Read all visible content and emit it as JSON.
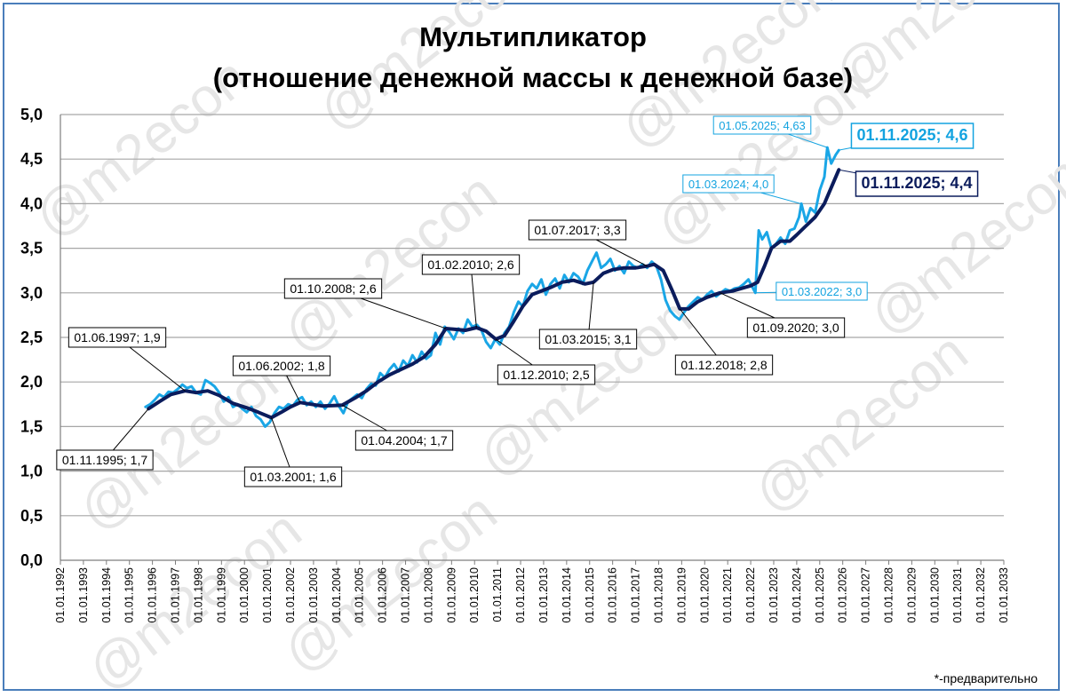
{
  "watermark": "@m2econ",
  "footnote": "*-предварительно",
  "colors": {
    "monthly": "#1aa6e6",
    "trend": "#0b1c5c",
    "grid": "#a6a6a6",
    "frame": "#4a7ebb",
    "watermark": "#e6e6e6"
  },
  "chart_data": {
    "type": "line",
    "title": "Мультипликатор",
    "subtitle": "(отношение денежной массы к денежной базе)",
    "xlabel": "",
    "ylabel": "",
    "xlim": [
      1992,
      2033
    ],
    "ylim": [
      0,
      5
    ],
    "y_ticks": [
      "0,0",
      "0,5",
      "1,0",
      "1,5",
      "2,0",
      "2,5",
      "3,0",
      "3,5",
      "4,0",
      "4,5",
      "5,0"
    ],
    "x_ticks": [
      "01.01.1992",
      "01.01.1993",
      "01.01.1994",
      "01.01.1995",
      "01.01.1996",
      "01.01.1997",
      "01.01.1998",
      "01.01.1999",
      "01.01.2000",
      "01.01.2001",
      "01.01.2002",
      "01.01.2003",
      "01.01.2004",
      "01.01.2005",
      "01.01.2006",
      "01.01.2007",
      "01.01.2008",
      "01.01.2009",
      "01.01.2010",
      "01.01.2011",
      "01.01.2012",
      "01.01.2013",
      "01.01.2014",
      "01.01.2015",
      "01.01.2016",
      "01.01.2017",
      "01.01.2018",
      "01.01.2019",
      "01.01.2020",
      "01.01.2021",
      "01.01.2022",
      "01.01.2023",
      "01.01.2024",
      "01.01.2025",
      "01.01.2026",
      "01.01.2027",
      "01.01.2028",
      "01.01.2029",
      "01.01.2030",
      "01.01.2031",
      "01.01.2032",
      "01.01.2033"
    ],
    "grid": true,
    "legend": "none",
    "series": [
      {
        "color": "#1aa6e6",
        "points": [
          [
            1995.7,
            1.72
          ],
          [
            1995.9,
            1.75
          ],
          [
            1996.1,
            1.8
          ],
          [
            1996.3,
            1.86
          ],
          [
            1996.5,
            1.83
          ],
          [
            1996.7,
            1.89
          ],
          [
            1996.9,
            1.88
          ],
          [
            1997.1,
            1.92
          ],
          [
            1997.3,
            1.97
          ],
          [
            1997.5,
            1.93
          ],
          [
            1997.7,
            1.95
          ],
          [
            1997.9,
            1.88
          ],
          [
            1998.1,
            1.86
          ],
          [
            1998.3,
            2.02
          ],
          [
            1998.5,
            1.99
          ],
          [
            1998.7,
            1.95
          ],
          [
            1998.9,
            1.88
          ],
          [
            1999.1,
            1.78
          ],
          [
            1999.3,
            1.83
          ],
          [
            1999.5,
            1.72
          ],
          [
            1999.7,
            1.75
          ],
          [
            1999.9,
            1.7
          ],
          [
            2000.1,
            1.66
          ],
          [
            2000.3,
            1.72
          ],
          [
            2000.5,
            1.62
          ],
          [
            2000.7,
            1.58
          ],
          [
            2000.9,
            1.5
          ],
          [
            2001.1,
            1.55
          ],
          [
            2001.3,
            1.65
          ],
          [
            2001.5,
            1.72
          ],
          [
            2001.7,
            1.7
          ],
          [
            2001.9,
            1.75
          ],
          [
            2002.1,
            1.73
          ],
          [
            2002.3,
            1.8
          ],
          [
            2002.5,
            1.83
          ],
          [
            2002.7,
            1.74
          ],
          [
            2002.9,
            1.78
          ],
          [
            2003.1,
            1.72
          ],
          [
            2003.3,
            1.78
          ],
          [
            2003.5,
            1.7
          ],
          [
            2003.7,
            1.76
          ],
          [
            2003.9,
            1.84
          ],
          [
            2004.1,
            1.73
          ],
          [
            2004.3,
            1.65
          ],
          [
            2004.5,
            1.78
          ],
          [
            2004.7,
            1.82
          ],
          [
            2004.9,
            1.86
          ],
          [
            2005.1,
            1.82
          ],
          [
            2005.3,
            1.92
          ],
          [
            2005.5,
            1.98
          ],
          [
            2005.7,
            1.96
          ],
          [
            2005.9,
            2.1
          ],
          [
            2006.1,
            2.05
          ],
          [
            2006.3,
            2.14
          ],
          [
            2006.5,
            2.2
          ],
          [
            2006.7,
            2.12
          ],
          [
            2006.9,
            2.24
          ],
          [
            2007.1,
            2.18
          ],
          [
            2007.3,
            2.3
          ],
          [
            2007.5,
            2.22
          ],
          [
            2007.7,
            2.34
          ],
          [
            2007.9,
            2.26
          ],
          [
            2008.1,
            2.3
          ],
          [
            2008.3,
            2.55
          ],
          [
            2008.5,
            2.42
          ],
          [
            2008.7,
            2.62
          ],
          [
            2008.9,
            2.56
          ],
          [
            2009.1,
            2.48
          ],
          [
            2009.3,
            2.6
          ],
          [
            2009.5,
            2.55
          ],
          [
            2009.7,
            2.7
          ],
          [
            2009.9,
            2.62
          ],
          [
            2010.1,
            2.64
          ],
          [
            2010.3,
            2.58
          ],
          [
            2010.5,
            2.45
          ],
          [
            2010.7,
            2.38
          ],
          [
            2010.9,
            2.48
          ],
          [
            2011.1,
            2.42
          ],
          [
            2011.3,
            2.55
          ],
          [
            2011.5,
            2.62
          ],
          [
            2011.7,
            2.78
          ],
          [
            2011.9,
            2.9
          ],
          [
            2012.1,
            2.85
          ],
          [
            2012.3,
            3.02
          ],
          [
            2012.5,
            3.1
          ],
          [
            2012.7,
            3.05
          ],
          [
            2012.9,
            3.15
          ],
          [
            2013.1,
            2.98
          ],
          [
            2013.3,
            3.1
          ],
          [
            2013.5,
            3.16
          ],
          [
            2013.7,
            3.05
          ],
          [
            2013.9,
            3.2
          ],
          [
            2014.1,
            3.12
          ],
          [
            2014.3,
            3.22
          ],
          [
            2014.5,
            3.18
          ],
          [
            2014.7,
            3.1
          ],
          [
            2014.9,
            3.25
          ],
          [
            2015.1,
            3.35
          ],
          [
            2015.3,
            3.45
          ],
          [
            2015.5,
            3.28
          ],
          [
            2015.7,
            3.32
          ],
          [
            2015.9,
            3.38
          ],
          [
            2016.1,
            3.25
          ],
          [
            2016.3,
            3.3
          ],
          [
            2016.5,
            3.22
          ],
          [
            2016.7,
            3.35
          ],
          [
            2016.9,
            3.3
          ],
          [
            2017.1,
            3.28
          ],
          [
            2017.3,
            3.32
          ],
          [
            2017.5,
            3.28
          ],
          [
            2017.7,
            3.35
          ],
          [
            2017.9,
            3.3
          ],
          [
            2018.1,
            3.15
          ],
          [
            2018.3,
            2.92
          ],
          [
            2018.5,
            2.8
          ],
          [
            2018.7,
            2.74
          ],
          [
            2018.9,
            2.7
          ],
          [
            2019.1,
            2.78
          ],
          [
            2019.3,
            2.85
          ],
          [
            2019.5,
            2.9
          ],
          [
            2019.7,
            2.95
          ],
          [
            2019.9,
            2.92
          ],
          [
            2020.1,
            2.98
          ],
          [
            2020.3,
            3.02
          ],
          [
            2020.5,
            2.96
          ],
          [
            2020.7,
            3.0
          ],
          [
            2020.9,
            3.04
          ],
          [
            2021.1,
            3.02
          ],
          [
            2021.3,
            3.05
          ],
          [
            2021.5,
            3.06
          ],
          [
            2021.7,
            3.1
          ],
          [
            2021.9,
            3.15
          ],
          [
            2022.1,
            3.05
          ],
          [
            2022.2,
            3.0
          ],
          [
            2022.35,
            3.7
          ],
          [
            2022.5,
            3.6
          ],
          [
            2022.7,
            3.68
          ],
          [
            2022.9,
            3.5
          ],
          [
            2023.1,
            3.55
          ],
          [
            2023.3,
            3.62
          ],
          [
            2023.5,
            3.55
          ],
          [
            2023.7,
            3.7
          ],
          [
            2023.9,
            3.72
          ],
          [
            2024.1,
            3.85
          ],
          [
            2024.2,
            4.0
          ],
          [
            2024.4,
            3.8
          ],
          [
            2024.6,
            3.95
          ],
          [
            2024.8,
            3.9
          ],
          [
            2025.0,
            4.15
          ],
          [
            2025.2,
            4.3
          ],
          [
            2025.33,
            4.63
          ],
          [
            2025.5,
            4.45
          ],
          [
            2025.7,
            4.55
          ],
          [
            2025.83,
            4.6
          ]
        ]
      },
      {
        "color": "#0b1c5c",
        "points": [
          [
            1995.83,
            1.7
          ],
          [
            1996.3,
            1.78
          ],
          [
            1996.8,
            1.86
          ],
          [
            1997.42,
            1.9
          ],
          [
            1997.9,
            1.88
          ],
          [
            1998.4,
            1.9
          ],
          [
            1998.9,
            1.85
          ],
          [
            1999.5,
            1.76
          ],
          [
            2000.1,
            1.71
          ],
          [
            2000.6,
            1.66
          ],
          [
            2001.17,
            1.6
          ],
          [
            2001.6,
            1.66
          ],
          [
            2002.0,
            1.72
          ],
          [
            2002.42,
            1.77
          ],
          [
            2002.9,
            1.75
          ],
          [
            2003.4,
            1.73
          ],
          [
            2004.25,
            1.74
          ],
          [
            2004.8,
            1.82
          ],
          [
            2005.3,
            1.9
          ],
          [
            2005.8,
            2.0
          ],
          [
            2006.3,
            2.08
          ],
          [
            2006.8,
            2.14
          ],
          [
            2007.3,
            2.2
          ],
          [
            2007.8,
            2.28
          ],
          [
            2008.3,
            2.42
          ],
          [
            2008.75,
            2.6
          ],
          [
            2009.2,
            2.59
          ],
          [
            2009.6,
            2.58
          ],
          [
            2010.08,
            2.61
          ],
          [
            2010.5,
            2.57
          ],
          [
            2010.92,
            2.48
          ],
          [
            2011.3,
            2.52
          ],
          [
            2011.7,
            2.68
          ],
          [
            2012.1,
            2.85
          ],
          [
            2012.5,
            2.98
          ],
          [
            2012.9,
            3.02
          ],
          [
            2013.3,
            3.06
          ],
          [
            2013.8,
            3.12
          ],
          [
            2014.3,
            3.14
          ],
          [
            2014.8,
            3.1
          ],
          [
            2015.17,
            3.12
          ],
          [
            2015.6,
            3.22
          ],
          [
            2016.0,
            3.26
          ],
          [
            2016.5,
            3.28
          ],
          [
            2017.0,
            3.28
          ],
          [
            2017.5,
            3.3
          ],
          [
            2017.8,
            3.32
          ],
          [
            2018.2,
            3.25
          ],
          [
            2018.6,
            3.02
          ],
          [
            2018.92,
            2.82
          ],
          [
            2019.3,
            2.82
          ],
          [
            2019.7,
            2.9
          ],
          [
            2020.1,
            2.95
          ],
          [
            2020.67,
            3.0
          ],
          [
            2021.2,
            3.02
          ],
          [
            2021.6,
            3.05
          ],
          [
            2022.0,
            3.08
          ],
          [
            2022.3,
            3.12
          ],
          [
            2022.6,
            3.3
          ],
          [
            2022.9,
            3.5
          ],
          [
            2023.3,
            3.58
          ],
          [
            2023.7,
            3.58
          ],
          [
            2024.0,
            3.65
          ],
          [
            2024.4,
            3.75
          ],
          [
            2024.8,
            3.85
          ],
          [
            2025.2,
            4.0
          ],
          [
            2025.5,
            4.18
          ],
          [
            2025.83,
            4.38
          ]
        ]
      }
    ],
    "annotations": [
      {
        "label": "01.11.1995; 1,7",
        "x": 1995.83,
        "y": 1.7,
        "style": "box"
      },
      {
        "label": "01.06.1997; 1,9",
        "x": 1997.42,
        "y": 1.9,
        "style": "box"
      },
      {
        "label": "01.03.2001; 1,6",
        "x": 2001.17,
        "y": 1.6,
        "style": "box"
      },
      {
        "label": "01.06.2002; 1,8",
        "x": 2002.42,
        "y": 1.77,
        "style": "box"
      },
      {
        "label": "01.04.2004; 1,7",
        "x": 2004.25,
        "y": 1.74,
        "style": "box"
      },
      {
        "label": "01.10.2008; 2,6",
        "x": 2008.75,
        "y": 2.6,
        "style": "box"
      },
      {
        "label": "01.02.2010; 2,6",
        "x": 2010.08,
        "y": 2.61,
        "style": "box"
      },
      {
        "label": "01.12.2010; 2,5",
        "x": 2010.92,
        "y": 2.48,
        "style": "box"
      },
      {
        "label": "01.03.2015; 3,1",
        "x": 2015.17,
        "y": 3.12,
        "style": "box"
      },
      {
        "label": "01.07.2017; 3,3",
        "x": 2017.5,
        "y": 3.3,
        "style": "box"
      },
      {
        "label": "01.12.2018; 2,8",
        "x": 2018.92,
        "y": 2.82,
        "style": "box"
      },
      {
        "label": "01.09.2020; 3,0",
        "x": 2020.67,
        "y": 3.0,
        "style": "box"
      },
      {
        "label": "01.03.2022; 3,0",
        "x": 2022.17,
        "y": 3.0,
        "style": "lightblue"
      },
      {
        "label": "01.03.2024; 4,0",
        "x": 2024.17,
        "y": 4.0,
        "style": "lightblue"
      },
      {
        "label": "01.05.2025; 4,63",
        "x": 2025.33,
        "y": 4.63,
        "style": "lightblue"
      },
      {
        "label": "01.11.2025; 4,6",
        "x": 2025.83,
        "y": 4.6,
        "style": "big-lightblue"
      },
      {
        "label": "01.11.2025; 4,4",
        "x": 2025.83,
        "y": 4.38,
        "style": "big-navy"
      }
    ]
  }
}
